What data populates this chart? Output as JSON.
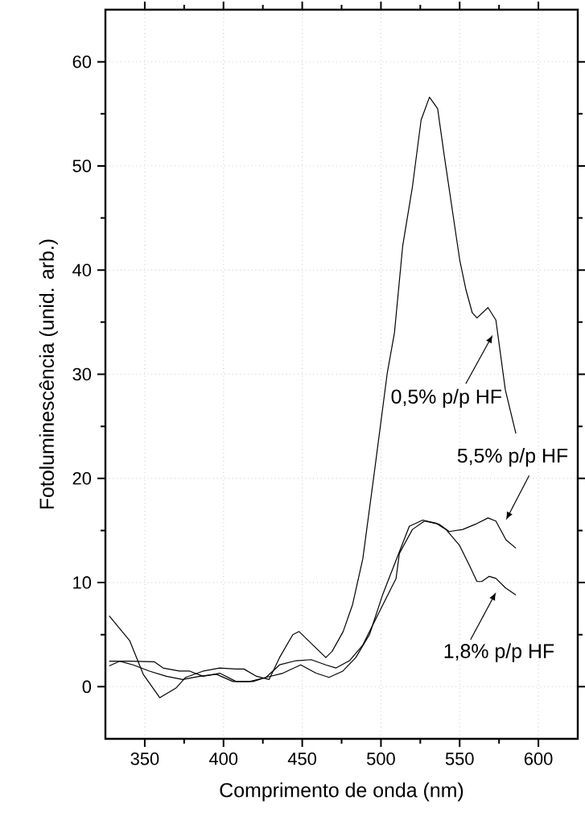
{
  "chart_data": {
    "type": "line",
    "xlabel": "Comprimento de onda (nm)",
    "ylabel": "Fotoluminescência (unid. arb.)",
    "xlim": [
      325,
      625
    ],
    "ylim": [
      -5,
      65
    ],
    "xticks": [
      350,
      400,
      450,
      500,
      550,
      600
    ],
    "yticks": [
      0,
      10,
      20,
      30,
      40,
      50,
      60
    ],
    "grid": true,
    "marker": "none",
    "line_style": "solid",
    "series": [
      {
        "color": "#000000",
        "x": [
          327.4,
          340.5,
          349,
          359.5,
          370,
          376,
          387,
          397.6,
          408,
          413,
          421,
          429,
          435.6,
          444,
          448,
          456.8,
          465,
          469,
          476,
          482,
          488.5,
          496,
          504,
          508.6,
          513.8,
          520,
          525.5,
          530.8,
          536,
          540,
          545,
          550,
          554,
          558,
          561,
          568,
          573,
          579,
          585.7
        ],
        "values": [
          6.8,
          4.4,
          1.2,
          -1.05,
          -0.1,
          0.9,
          1.5,
          1.8,
          1.7,
          1.7,
          1,
          0.7,
          2.8,
          5,
          5.3,
          4,
          2.8,
          3.4,
          5.3,
          7.9,
          12.3,
          20.8,
          30.1,
          34,
          42.3,
          48,
          54.4,
          56.6,
          55.5,
          51.2,
          46.1,
          41,
          38.1,
          35.9,
          35.4,
          36.4,
          35.2,
          28.5,
          24.3
        ]
      },
      {
        "color": "#000000",
        "x": [
          327.4,
          340.5,
          356,
          361.6,
          372,
          378.5,
          387,
          397.6,
          408,
          418.7,
          427,
          435.6,
          446,
          455.7,
          465,
          471.5,
          480,
          488.5,
          499,
          509.6,
          511.7,
          520,
          527.6,
          537,
          543.4,
          552,
          560,
          568,
          573,
          579.4,
          585.7
        ],
        "values": [
          2.45,
          2.45,
          2.4,
          1.8,
          1.5,
          1.5,
          1.0,
          1.3,
          0.5,
          0.5,
          0.9,
          2.1,
          2.5,
          2.6,
          2.1,
          1.8,
          2.5,
          4,
          7.2,
          10.4,
          12.8,
          15.1,
          15.9,
          15.6,
          14.9,
          15.1,
          15.6,
          16.2,
          15.9,
          14.1,
          13.3
        ]
      },
      {
        "color": "#000000",
        "x": [
          327.4,
          334,
          342.6,
          353,
          363.7,
          374,
          385,
          395.5,
          406,
          416.6,
          427,
          437.7,
          449,
          458.8,
          467,
          475.8,
          484,
          492.7,
          501,
          518,
          526.5,
          535,
          541.3,
          549.8,
          556,
          561,
          564,
          568.8,
          573,
          579,
          585.7
        ],
        "values": [
          2.0,
          2.45,
          2.1,
          1.5,
          1.0,
          0.7,
          1.0,
          1.2,
          0.5,
          0.5,
          0.9,
          1.3,
          2.1,
          1.3,
          0.9,
          1.5,
          2.8,
          5,
          8.8,
          15.4,
          16.0,
          15.7,
          15.1,
          13.6,
          11.7,
          10.1,
          10.1,
          10.6,
          10.4,
          9.5,
          8.8
        ]
      }
    ],
    "annotations": [
      "0,5% p/p HF",
      "5,5% p/p HF",
      "1,8% p/p HF"
    ]
  }
}
